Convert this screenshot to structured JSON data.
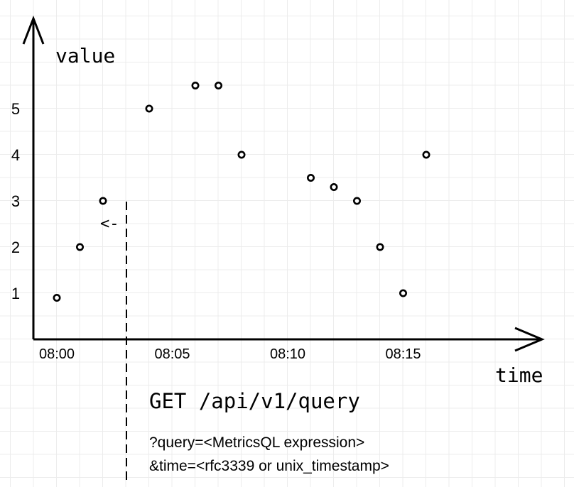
{
  "chart_data": {
    "type": "scatter",
    "xlabel": "time",
    "ylabel": "value",
    "x_ticks": [
      "08:00",
      "08:05",
      "08:10",
      "08:15"
    ],
    "y_ticks": [
      1,
      2,
      3,
      4,
      5
    ],
    "grid": true,
    "points": [
      {
        "x": "08:00",
        "y": 0.9
      },
      {
        "x": "08:01",
        "y": 2.0
      },
      {
        "x": "08:02",
        "y": 3.0
      },
      {
        "x": "08:04",
        "y": 5.0
      },
      {
        "x": "08:06",
        "y": 5.5
      },
      {
        "x": "08:07",
        "y": 5.5
      },
      {
        "x": "08:08",
        "y": 4.0
      },
      {
        "x": "08:11",
        "y": 3.5
      },
      {
        "x": "08:12",
        "y": 3.3
      },
      {
        "x": "08:13",
        "y": 3.0
      },
      {
        "x": "08:14",
        "y": 2.0
      },
      {
        "x": "08:15",
        "y": 1.0
      },
      {
        "x": "08:16",
        "y": 4.0
      }
    ],
    "query_marker": {
      "x": "08:03",
      "arrow": "<-"
    }
  },
  "request": {
    "title": "GET /api/v1/query",
    "param_query": "?query=<MetricsQL expression>",
    "param_time": "&time=<rfc3339 or unix_timestamp>"
  }
}
